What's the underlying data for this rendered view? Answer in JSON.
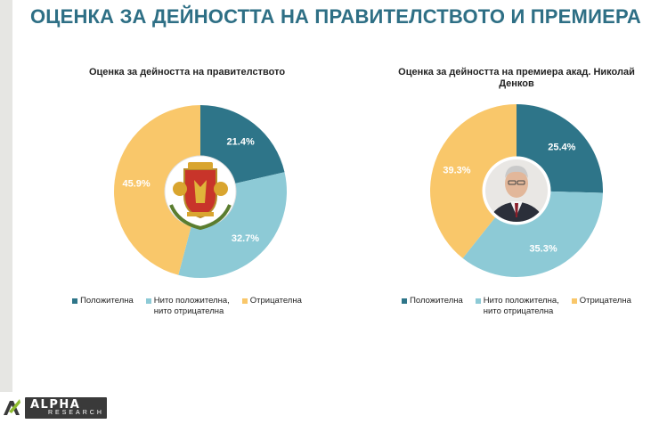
{
  "page": {
    "title": "ОЦЕНКА ЗА ДЕЙНОСТТА НА ПРАВИТЕЛСТВОТО И ПРЕМИЕРА"
  },
  "brand": {
    "name": "ALPHA",
    "sub": "RESEARCH",
    "mark": "alpha-research-logo-icon"
  },
  "colors": {
    "positive": "#2e7589",
    "neutral": "#8dcad6",
    "negative": "#f9c76a",
    "title": "#2e6f85"
  },
  "chart_data": [
    {
      "type": "pie",
      "donut": true,
      "title": "Оценка за дейността на правителството",
      "center_image": "bulgarian-coat-of-arms-icon",
      "categories": [
        "Положителна",
        "Нито положителна,\nнито отрицателна",
        "Отрицателна"
      ],
      "values": [
        21.4,
        32.7,
        45.9
      ],
      "labels": [
        "21.4%",
        "32.7%",
        "45.9%"
      ],
      "legend": "bottom"
    },
    {
      "type": "pie",
      "donut": true,
      "title": "Оценка за дейността на премиера акад. Николай\nДенков",
      "center_image": "prime-minister-portrait-icon",
      "categories": [
        "Положителна",
        "Нито положителна,\nнито отрицателна",
        "Отрицателна"
      ],
      "values": [
        25.4,
        35.3,
        39.3
      ],
      "labels": [
        "25.4%",
        "35.3%",
        "39.3%"
      ],
      "legend": "bottom"
    }
  ]
}
